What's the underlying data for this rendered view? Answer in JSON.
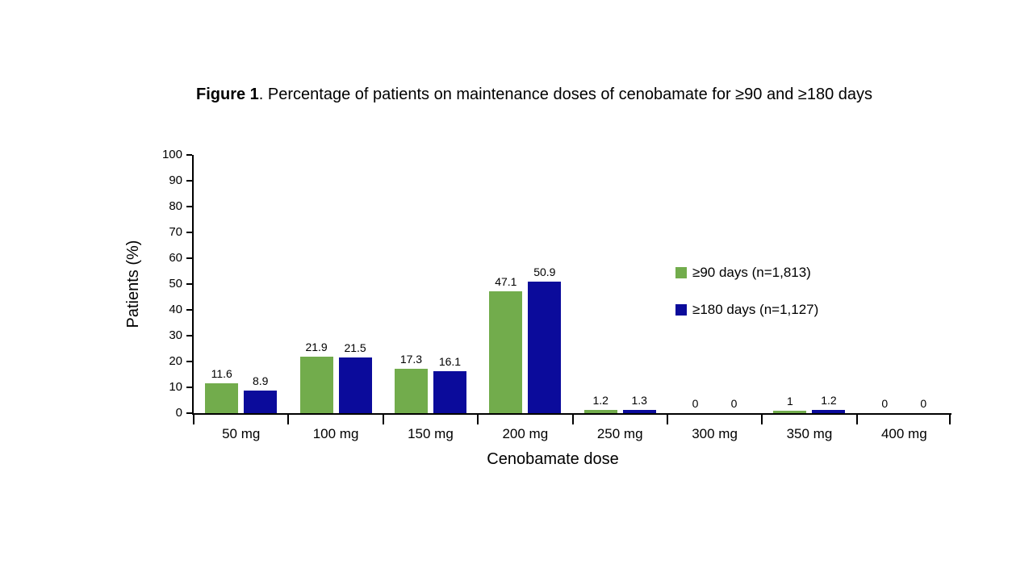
{
  "figure": {
    "label": "Figure 1",
    "caption": ". Percentage of patients on maintenance doses of cenobamate for ≥90 and ≥180 days"
  },
  "chart_data": {
    "type": "bar",
    "title": "Figure 1. Percentage of patients on maintenance doses of cenobamate for ≥90 and ≥180 days",
    "categories": [
      "50 mg",
      "100 mg",
      "150 mg",
      "200 mg",
      "250 mg",
      "300 mg",
      "350 mg",
      "400 mg"
    ],
    "series": [
      {
        "name": "≥90 days (n=1,813)",
        "color": "#72AC4C",
        "values": [
          11.6,
          21.9,
          17.3,
          47.1,
          1.2,
          0,
          1,
          0
        ],
        "labels": [
          "11.6",
          "21.9",
          "17.3",
          "47.1",
          "1.2",
          "0",
          "1",
          "0"
        ]
      },
      {
        "name": "≥180 days (n=1,127)",
        "color": "#0B0B9B",
        "values": [
          8.9,
          21.5,
          16.1,
          50.9,
          1.3,
          0,
          1.2,
          0
        ],
        "labels": [
          "8.9",
          "21.5",
          "16.1",
          "50.9",
          "1.3",
          "0",
          "1.2",
          "0"
        ]
      }
    ],
    "xlabel": "Cenobamate dose",
    "ylabel": "Patients (%)",
    "ylim": [
      0,
      100
    ],
    "ytick_step": 10,
    "grid": false,
    "legend_position": "right-middle",
    "axis_color": "#000000",
    "background_color": "#FFFFFF"
  }
}
